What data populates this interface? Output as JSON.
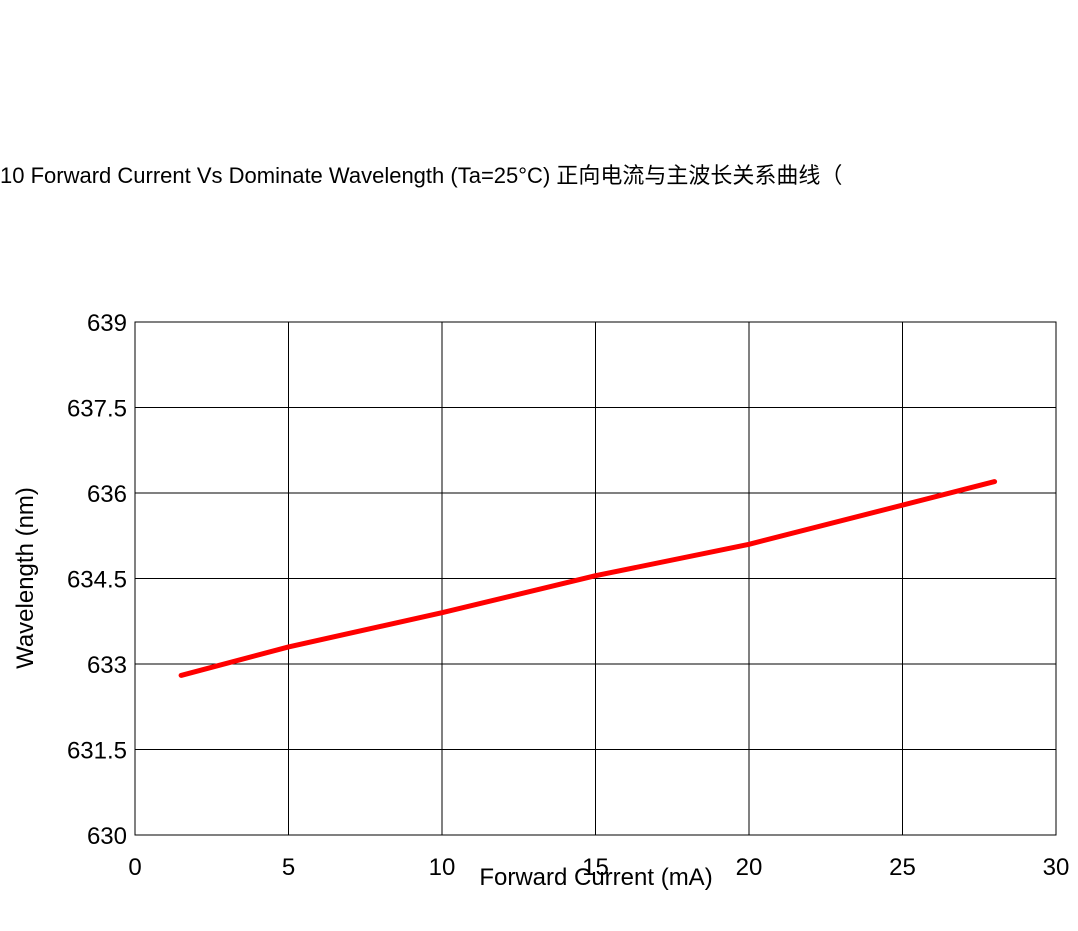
{
  "chart_data": {
    "type": "line",
    "title": "10 Forward Current Vs Dominate Wavelength (Ta=25°C) 正向电流与主波长关系曲线（",
    "xlabel": "Forward Current (mA)",
    "ylabel": "Wavelength (nm)",
    "xlim": [
      0,
      30
    ],
    "ylim": [
      630,
      639
    ],
    "xticks": [
      0,
      5,
      10,
      15,
      20,
      25,
      30
    ],
    "yticks": [
      630,
      631.5,
      633,
      634.5,
      636,
      637.5,
      639
    ],
    "xtick_labels": [
      "0",
      "5",
      "10",
      "15",
      "20",
      "25",
      "30"
    ],
    "ytick_labels": [
      "630",
      "631.5",
      "633",
      "634.5",
      "636",
      "637.5",
      "639"
    ],
    "grid": true,
    "series": [
      {
        "color": "#ff0000",
        "x": [
          1.5,
          5,
          10,
          15,
          20,
          28
        ],
        "y": [
          632.8,
          633.3,
          633.9,
          634.55,
          635.1,
          636.2
        ]
      }
    ]
  }
}
